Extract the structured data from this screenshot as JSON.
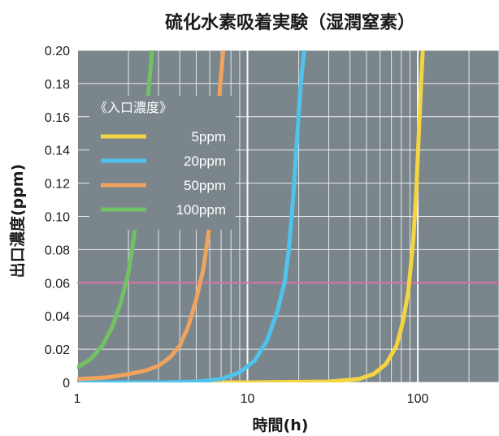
{
  "chart_data": {
    "type": "line",
    "title": "硫化水素吸着実験（湿潤窒素）",
    "xlabel": "時間(h)",
    "ylabel": "出口濃度(ppm)",
    "x_scale": "log",
    "xlim": [
      1,
      300
    ],
    "ylim": [
      0,
      0.2
    ],
    "x_ticks": [
      "1",
      "10",
      "100"
    ],
    "y_ticks": [
      "0",
      "0.02",
      "0.04",
      "0.06",
      "0.08",
      "0.10",
      "0.12",
      "0.14",
      "0.16",
      "0.18",
      "0.20"
    ],
    "grid": true,
    "plot_background": "#7b868c",
    "legend": {
      "title": "《入口濃度》",
      "position": "top-left"
    },
    "reference_line": {
      "y": 0.06,
      "color": "#e070b0"
    },
    "series": [
      {
        "name": "5ppm",
        "color": "#f5d442",
        "x": [
          1,
          10,
          30,
          45,
          55,
          65,
          75,
          82,
          88,
          94,
          98,
          101,
          104,
          107
        ],
        "y": [
          0.0,
          0.0,
          0.0005,
          0.002,
          0.005,
          0.011,
          0.022,
          0.037,
          0.055,
          0.085,
          0.115,
          0.145,
          0.175,
          0.2
        ]
      },
      {
        "name": "20ppm",
        "color": "#4fc3ec",
        "x": [
          1,
          3,
          5,
          7,
          9,
          11,
          13,
          15,
          16.5,
          17.5,
          18.5,
          19.5,
          20.5,
          21.5
        ],
        "y": [
          0.0,
          0.0,
          0.0005,
          0.002,
          0.006,
          0.013,
          0.025,
          0.043,
          0.06,
          0.08,
          0.11,
          0.145,
          0.178,
          0.2
        ]
      },
      {
        "name": "50ppm",
        "color": "#f0a35c",
        "x": [
          1,
          1.5,
          2,
          2.5,
          3,
          3.5,
          4,
          4.5,
          5,
          5.5,
          6,
          6.3,
          6.6,
          6.9,
          7.2
        ],
        "y": [
          0.002,
          0.003,
          0.005,
          0.007,
          0.01,
          0.015,
          0.022,
          0.034,
          0.05,
          0.068,
          0.095,
          0.12,
          0.148,
          0.178,
          0.2
        ]
      },
      {
        "name": "100ppm",
        "color": "#72c165",
        "x": [
          1,
          1.2,
          1.4,
          1.6,
          1.8,
          2,
          2.1,
          2.2,
          2.3,
          2.4,
          2.5,
          2.6,
          2.75
        ],
        "y": [
          0.009,
          0.014,
          0.022,
          0.033,
          0.048,
          0.066,
          0.08,
          0.095,
          0.112,
          0.13,
          0.15,
          0.17,
          0.2
        ]
      }
    ]
  }
}
